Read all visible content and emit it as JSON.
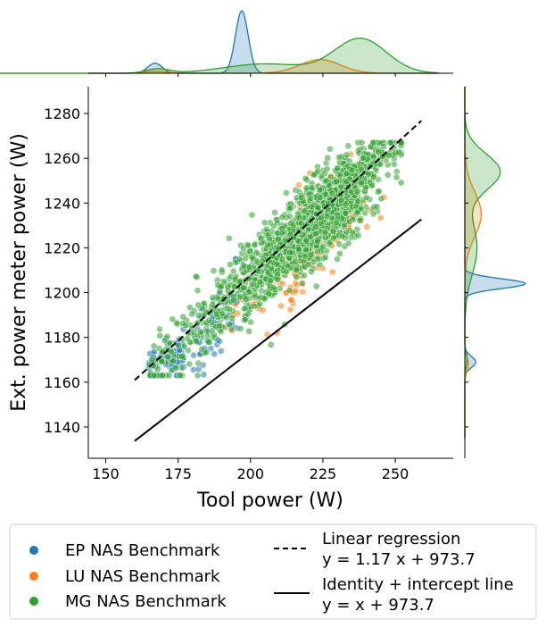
{
  "chart_data": {
    "type": "scatter",
    "title": "",
    "xlabel": "Tool power (W)",
    "ylabel": "Ext. power meter power (W)",
    "xlim": [
      144,
      270
    ],
    "ylim": [
      1126,
      1292
    ],
    "xticks": [
      150,
      175,
      200,
      225,
      250
    ],
    "yticks": [
      1140,
      1160,
      1180,
      1200,
      1220,
      1240,
      1260,
      1280
    ],
    "grid": false,
    "legend_position": "bottom",
    "marginals": "kde",
    "series": [
      {
        "name": "EP NAS Benchmark",
        "color": "#1f77b4",
        "cluster_center": {
          "x": 175,
          "y": 1180
        },
        "spread": {
          "x": 15,
          "y": 20
        },
        "kde_x_peaks": [
          167,
          197
        ],
        "kde_y_peaks": [
          1169,
          1204
        ]
      },
      {
        "name": "LU NAS Benchmark",
        "color": "#ff7f0e",
        "cluster_center": {
          "x": 222,
          "y": 1225
        },
        "spread": {
          "x": 12,
          "y": 15
        },
        "kde_x_peaks": [
          224
        ],
        "kde_y_peaks": [
          1235
        ]
      },
      {
        "name": "MG NAS Benchmark",
        "color": "#2ca02c",
        "cluster_center": {
          "x": 230,
          "y": 1245
        },
        "spread": {
          "x": 15,
          "y": 12
        },
        "kde_x_peaks": [
          238
        ],
        "kde_y_peaks": [
          1254
        ]
      }
    ],
    "lines": [
      {
        "name": "Linear regression",
        "equation": "y = 1.17 x + 973.7",
        "slope": 1.17,
        "intercept": 973.7,
        "x_range": [
          160,
          259
        ],
        "style": "dashed",
        "color": "#000000"
      },
      {
        "name": "Identity + intercept line",
        "equation": "y = x + 973.7",
        "slope": 1.0,
        "intercept": 973.7,
        "x_range": [
          160,
          259
        ],
        "style": "solid",
        "color": "#000000"
      }
    ]
  }
}
